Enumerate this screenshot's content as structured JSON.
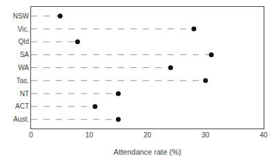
{
  "chart_data": {
    "type": "dot",
    "orientation": "horizontal",
    "categories": [
      "NSW",
      "Vic.",
      "Qld",
      "SA",
      "WA",
      "Tas.",
      "NT",
      "ACT",
      "Aust."
    ],
    "values": [
      5,
      28,
      8,
      31,
      24,
      30,
      15,
      11,
      15
    ],
    "xlim": [
      0,
      40
    ],
    "xticks": [
      0,
      10,
      20,
      30,
      40
    ],
    "xlabel": "Attendance rate (%)",
    "color": "#111111",
    "marker": "circle",
    "line_style": "dashed",
    "grid": false
  }
}
